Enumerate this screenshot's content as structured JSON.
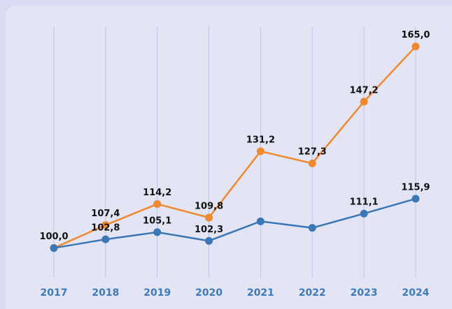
{
  "chart_data": {
    "type": "line",
    "categories": [
      "2017",
      "2018",
      "2019",
      "2020",
      "2021",
      "2022",
      "2023",
      "2024"
    ],
    "series": [
      {
        "color": "#f0882f",
        "values": [
          100.0,
          107.4,
          114.2,
          109.8,
          131.2,
          127.3,
          147.2,
          165.0
        ],
        "value_labels": [
          null,
          "107,4",
          "114,2",
          "109,8",
          "131,2",
          "127,3",
          "147,2",
          "165,0"
        ]
      },
      {
        "color": "#3a78b5",
        "values": [
          100.0,
          102.8,
          105.1,
          102.3,
          108.6,
          106.5,
          111.1,
          115.9
        ],
        "value_labels": [
          "100,0",
          "102,8",
          "105,1",
          "102,3",
          null,
          null,
          "111,1",
          "115,9"
        ]
      }
    ],
    "ylim": [
      90,
      171
    ],
    "grid": true
  }
}
